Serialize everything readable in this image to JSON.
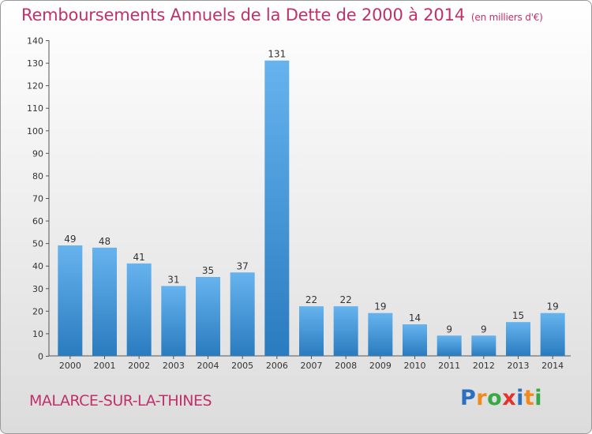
{
  "title": "Remboursements Annuels de la Dette de 2000 à 2014",
  "subtitle": "(en milliers d'€)",
  "commune": "MALARCE-SUR-LA-THINES",
  "logo": {
    "text": "Proxiti",
    "colors": [
      "#2a6fc0",
      "#f08a1c",
      "#3aa844",
      "#e5322d",
      "#2a6fc0",
      "#f08a1c",
      "#3aa844"
    ]
  },
  "colors": {
    "bar_light": "#66b3ee",
    "bar_dark": "#2a7bbf",
    "title": "#c0306a"
  },
  "chart_data": {
    "type": "bar",
    "categories": [
      "2000",
      "2001",
      "2002",
      "2003",
      "2004",
      "2005",
      "2006",
      "2007",
      "2008",
      "2009",
      "2010",
      "2011",
      "2012",
      "2013",
      "2014"
    ],
    "values": [
      49,
      48,
      41,
      31,
      35,
      37,
      131,
      22,
      22,
      19,
      14,
      9,
      9,
      15,
      19
    ],
    "yticks": [
      0,
      10,
      20,
      30,
      40,
      50,
      60,
      70,
      80,
      90,
      100,
      110,
      120,
      130,
      140
    ],
    "ylim": [
      0,
      140
    ],
    "grid": false,
    "title": "Remboursements Annuels de la Dette de 2000 à 2014",
    "xlabel": "",
    "ylabel": ""
  }
}
